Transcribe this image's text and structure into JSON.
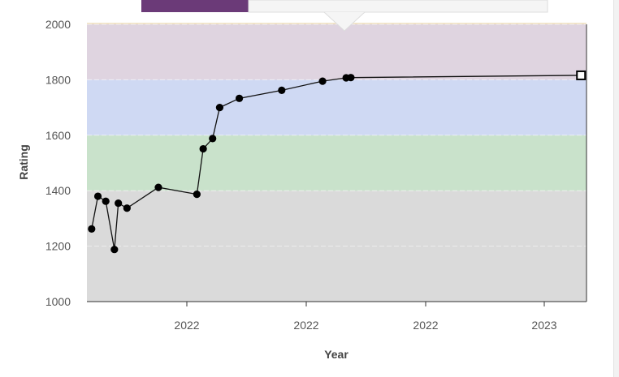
{
  "chart_data": {
    "type": "line",
    "xlabel": "Year",
    "ylabel": "Rating",
    "ylim": [
      1000,
      2000
    ],
    "yticks": [
      1000,
      1200,
      1400,
      1600,
      1800,
      2000
    ],
    "xtick_labels": [
      "2022",
      "2022",
      "2022",
      "2023"
    ],
    "grid": true,
    "bands": [
      {
        "from": 1000,
        "to": 1400,
        "color": "#dadada"
      },
      {
        "from": 1400,
        "to": 1600,
        "color": "#c9e2cb"
      },
      {
        "from": 1600,
        "to": 1800,
        "color": "#cfd9f3"
      },
      {
        "from": 1800,
        "to": 2000,
        "color": "#dfd4e0"
      }
    ],
    "series": [
      {
        "values": [
          1262,
          1380,
          1362,
          1188,
          1355,
          1337,
          1412,
          1387,
          1551,
          1588,
          1700,
          1733,
          1762,
          1795,
          1807,
          1808,
          1816
        ],
        "index": [
          0.2,
          1.0,
          2.0,
          3.1,
          3.6,
          4.7,
          8.7,
          13.6,
          14.4,
          15.6,
          16.5,
          19.0,
          24.4,
          29.6,
          32.6,
          33.2,
          62.5
        ],
        "last_marker": "square"
      }
    ],
    "line_color": "#111111",
    "marker_color": "#000000"
  },
  "tooltip": {
    "accent_color": "#6b3a78"
  }
}
